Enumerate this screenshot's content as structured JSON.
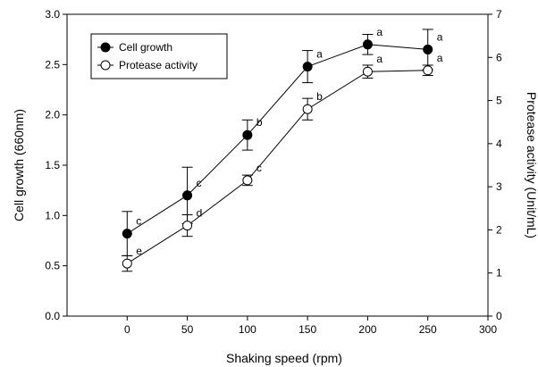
{
  "chart_data": {
    "type": "line",
    "title": "",
    "xlabel": "Shaking speed (rpm)",
    "ylabel_left": "Cell growth (660nm)",
    "ylabel_right": "Protease activity (Unit/mL)",
    "xlim": [
      -50,
      300
    ],
    "ylim_left": [
      0,
      3.0
    ],
    "ylim_right": [
      0,
      7
    ],
    "x_ticks": [
      0,
      50,
      100,
      150,
      200,
      250,
      300
    ],
    "y_left_ticks": [
      "0.0",
      "0.5",
      "1.0",
      "1.5",
      "2.0",
      "2.5",
      "3.0"
    ],
    "y_right_ticks": [
      "0",
      "1",
      "2",
      "3",
      "4",
      "5",
      "6",
      "7"
    ],
    "grid": false,
    "legend": "top-left",
    "series": [
      {
        "name": "Cell growth",
        "axis": "left",
        "marker": "filled-circle",
        "x": [
          0,
          50,
          100,
          150,
          200,
          250
        ],
        "y": [
          0.82,
          1.2,
          1.8,
          2.48,
          2.7,
          2.65
        ],
        "error": [
          0.22,
          0.28,
          0.15,
          0.16,
          0.1,
          0.2
        ],
        "labels": [
          "c",
          "c",
          "b",
          "a",
          "a",
          "a"
        ]
      },
      {
        "name": "Protease activity",
        "axis": "right",
        "marker": "open-circle",
        "x": [
          0,
          50,
          100,
          150,
          200,
          250
        ],
        "y": [
          1.22,
          2.1,
          3.15,
          4.8,
          5.67,
          5.7
        ],
        "error": [
          0.18,
          0.25,
          0.12,
          0.25,
          0.15,
          0.12
        ],
        "labels": [
          "e",
          "d",
          "c",
          "b",
          "a",
          "a"
        ]
      }
    ]
  }
}
